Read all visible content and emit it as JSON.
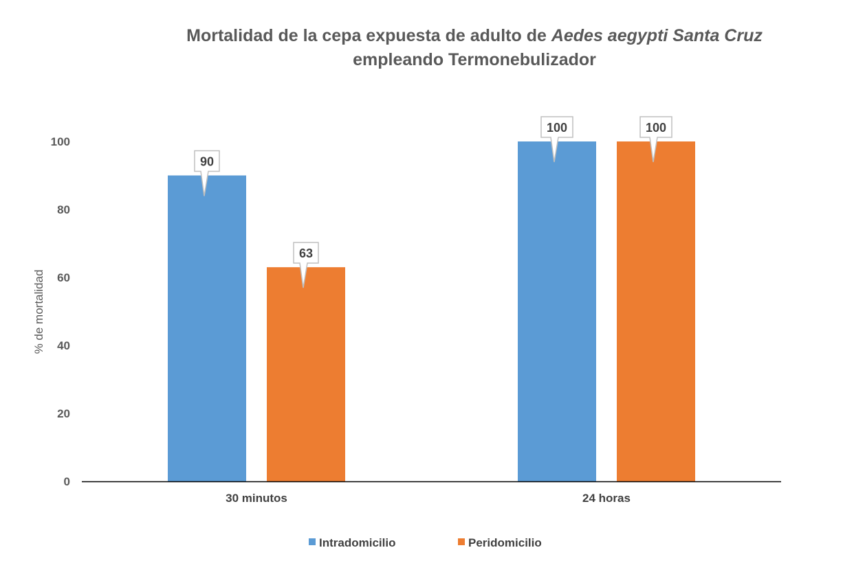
{
  "chart_data": {
    "type": "bar",
    "title": {
      "line1_prefix": "Mortalidad de la cepa expuesta  de adulto de ",
      "line1_italic": "Aedes aegypti Santa Cruz",
      "line2": "empleando Termonebulizador"
    },
    "xlabel": "",
    "ylabel": "% de mortalidad",
    "ylim": [
      0,
      100
    ],
    "yticks": [
      "0",
      "20",
      "40",
      "60",
      "80",
      "100"
    ],
    "categories": [
      "30 minutos",
      "24  horas"
    ],
    "series": [
      {
        "name": "Intradomicilio",
        "values": [
          90,
          100
        ],
        "labels": [
          "90",
          "100"
        ],
        "color": "#5B9BD5"
      },
      {
        "name": "Peridomicilio",
        "values": [
          63,
          100
        ],
        "labels": [
          "63",
          "100"
        ],
        "color": "#ED7D31"
      }
    ],
    "grid": false,
    "legend": "bottom-center",
    "data_labels": "callout"
  }
}
